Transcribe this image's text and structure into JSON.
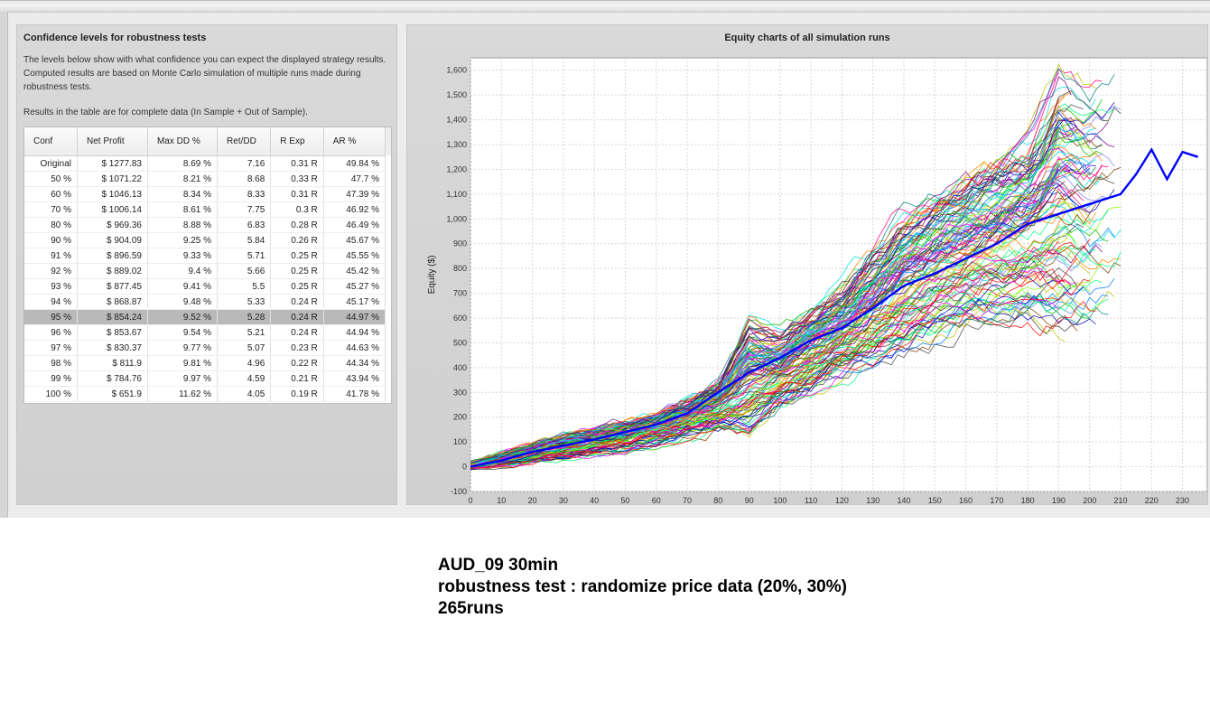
{
  "left_panel": {
    "title": "Confidence levels for robustness tests",
    "description": "The levels below show with what confidence you can expect the displayed strategy results. Computed results are based on Monte Carlo simulation of multiple runs made during robustness tests.",
    "note": "Results in the table are for complete data (In Sample + Out of Sample).",
    "table": {
      "columns": [
        "Conf",
        "Net Profit",
        "Max DD %",
        "Ret/DD",
        "R Exp",
        "AR %"
      ],
      "rows": [
        [
          "Original",
          "$ 1277.83",
          "8.69 %",
          "7.16",
          "0.31 R",
          "49.84 %"
        ],
        [
          "50 %",
          "$ 1071.22",
          "8.21 %",
          "8.68",
          "0.33 R",
          "47.7 %"
        ],
        [
          "60 %",
          "$ 1046.13",
          "8.34 %",
          "8.33",
          "0.31 R",
          "47.39 %"
        ],
        [
          "70 %",
          "$ 1006.14",
          "8.61 %",
          "7.75",
          "0.3 R",
          "46.92 %"
        ],
        [
          "80 %",
          "$ 969.36",
          "8.88 %",
          "6.83",
          "0.28 R",
          "46.49 %"
        ],
        [
          "90 %",
          "$ 904.09",
          "9.25 %",
          "5.84",
          "0.26 R",
          "45.67 %"
        ],
        [
          "91 %",
          "$ 896.59",
          "9.33 %",
          "5.71",
          "0.25 R",
          "45.55 %"
        ],
        [
          "92 %",
          "$ 889.02",
          "9.4 %",
          "5.66",
          "0.25 R",
          "45.42 %"
        ],
        [
          "93 %",
          "$ 877.45",
          "9.41 %",
          "5.5",
          "0.25 R",
          "45.27 %"
        ],
        [
          "94 %",
          "$ 868.87",
          "9.48 %",
          "5.33",
          "0.24 R",
          "45.17 %"
        ],
        [
          "95 %",
          "$ 854.24",
          "9.52 %",
          "5.28",
          "0.24 R",
          "44.97 %"
        ],
        [
          "96 %",
          "$ 853.67",
          "9.54 %",
          "5.21",
          "0.24 R",
          "44.94 %"
        ],
        [
          "97 %",
          "$ 830.37",
          "9.77 %",
          "5.07",
          "0.23 R",
          "44.63 %"
        ],
        [
          "98 %",
          "$ 811.9",
          "9.81 %",
          "4.96",
          "0.22 R",
          "44.34 %"
        ],
        [
          "99 %",
          "$ 784.76",
          "9.97 %",
          "4.59",
          "0.21 R",
          "43.94 %"
        ],
        [
          "100 %",
          "$ 651.9",
          "11.62 %",
          "4.05",
          "0.19 R",
          "41.78 %"
        ]
      ],
      "selected_row": "95 %"
    }
  },
  "right_panel": {
    "title": "Equity charts of all simulation runs"
  },
  "chart_data": {
    "type": "line",
    "title": "Equity charts of all simulation runs",
    "xlabel": "",
    "ylabel": "Equity ($)",
    "xlim": [
      0,
      238
    ],
    "ylim": [
      -100,
      1650
    ],
    "x_ticks": [
      0,
      10,
      20,
      30,
      40,
      50,
      60,
      70,
      80,
      90,
      100,
      110,
      120,
      130,
      140,
      150,
      160,
      170,
      180,
      190,
      200,
      210,
      220,
      230
    ],
    "y_ticks": [
      -100,
      0,
      100,
      200,
      300,
      400,
      500,
      600,
      700,
      800,
      900,
      1000,
      1100,
      1200,
      1300,
      1400,
      1500,
      1600
    ],
    "y_tick_labels": [
      "-100",
      "0",
      "100",
      "200",
      "300",
      "400",
      "500",
      "600",
      "700",
      "800",
      "900",
      "1,000",
      "1,100",
      "1,200",
      "1,300",
      "1,400",
      "1,500",
      "1,600"
    ],
    "grid": true,
    "series": [
      {
        "role": "original",
        "color": "#0000ff",
        "x": [
          0,
          10,
          20,
          30,
          40,
          50,
          60,
          70,
          80,
          90,
          100,
          110,
          120,
          130,
          140,
          150,
          160,
          170,
          180,
          190,
          200,
          210,
          215,
          220,
          225,
          230,
          235
        ],
        "values": [
          0,
          25,
          60,
          85,
          110,
          140,
          170,
          215,
          300,
          380,
          440,
          510,
          560,
          640,
          730,
          780,
          840,
          900,
          980,
          1020,
          1060,
          1100,
          1180,
          1280,
          1160,
          1270,
          1250
        ]
      }
    ],
    "simulation_runs": {
      "count": 265,
      "x_end_range": [
        190,
        212
      ],
      "envelope": {
        "x": [
          0,
          20,
          40,
          60,
          80,
          90,
          100,
          120,
          140,
          160,
          180,
          190,
          200,
          210
        ],
        "low": [
          -10,
          20,
          60,
          100,
          160,
          130,
          260,
          380,
          480,
          580,
          620,
          560,
          580,
          620
        ],
        "high": [
          20,
          90,
          150,
          210,
          330,
          580,
          520,
          720,
          1000,
          1150,
          1300,
          1560,
          1500,
          1540
        ]
      },
      "colors": [
        "#ff0000",
        "#00c000",
        "#0000c0",
        "#ff00ff",
        "#00e0e0",
        "#c0c000",
        "#800080",
        "#008080",
        "#ff8000",
        "#00ff80",
        "#8080ff",
        "#804000",
        "#ff0080",
        "#404040",
        "#80ff00",
        "#0080ff"
      ]
    }
  },
  "caption": {
    "line1": "AUD_09 30min",
    "line2": "robustness test : randomize price data (20%, 30%)",
    "line3": "265runs"
  }
}
